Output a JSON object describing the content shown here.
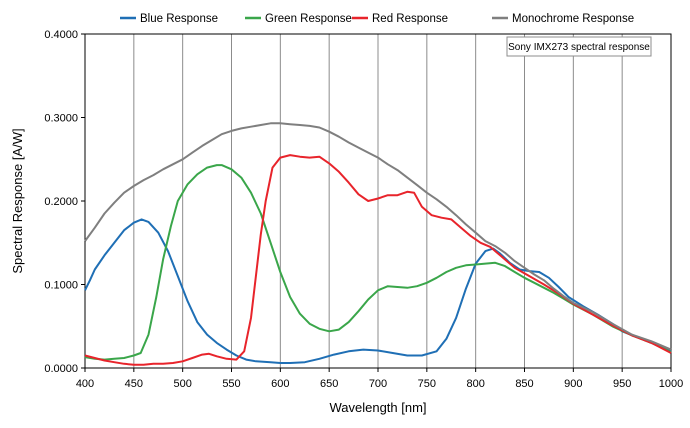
{
  "chart_data": {
    "type": "line",
    "xlabel": "Wavelength [nm]",
    "ylabel": "Spectral Response [A/W]",
    "xlim": [
      400,
      1000
    ],
    "ylim": [
      0,
      0.4
    ],
    "x_ticks": [
      400,
      450,
      500,
      550,
      600,
      650,
      700,
      750,
      800,
      850,
      900,
      950,
      1000
    ],
    "y_ticks": [
      0,
      0.1,
      0.2,
      0.3,
      0.4
    ],
    "y_tick_labels": [
      "0.0000",
      "0.1000",
      "0.2000",
      "0.3000",
      "0.4000"
    ],
    "grid": "vertical",
    "legend_position": "top",
    "annotation": "Sony IMX273 spectral response",
    "series": [
      {
        "name": "Blue Response",
        "color": "#1f6fb5",
        "points": [
          [
            400,
            0.093
          ],
          [
            405,
            0.105
          ],
          [
            410,
            0.118
          ],
          [
            420,
            0.135
          ],
          [
            430,
            0.15
          ],
          [
            440,
            0.165
          ],
          [
            450,
            0.174
          ],
          [
            458,
            0.178
          ],
          [
            465,
            0.175
          ],
          [
            475,
            0.162
          ],
          [
            485,
            0.14
          ],
          [
            495,
            0.11
          ],
          [
            505,
            0.08
          ],
          [
            515,
            0.055
          ],
          [
            525,
            0.04
          ],
          [
            535,
            0.03
          ],
          [
            545,
            0.022
          ],
          [
            555,
            0.015
          ],
          [
            565,
            0.01
          ],
          [
            575,
            0.008
          ],
          [
            590,
            0.007
          ],
          [
            600,
            0.006
          ],
          [
            610,
            0.006
          ],
          [
            625,
            0.007
          ],
          [
            640,
            0.011
          ],
          [
            655,
            0.016
          ],
          [
            670,
            0.02
          ],
          [
            685,
            0.022
          ],
          [
            700,
            0.021
          ],
          [
            715,
            0.018
          ],
          [
            730,
            0.015
          ],
          [
            745,
            0.015
          ],
          [
            760,
            0.02
          ],
          [
            770,
            0.035
          ],
          [
            780,
            0.06
          ],
          [
            790,
            0.095
          ],
          [
            800,
            0.125
          ],
          [
            810,
            0.14
          ],
          [
            818,
            0.143
          ],
          [
            825,
            0.137
          ],
          [
            835,
            0.126
          ],
          [
            845,
            0.118
          ],
          [
            855,
            0.116
          ],
          [
            865,
            0.115
          ],
          [
            875,
            0.108
          ],
          [
            885,
            0.097
          ],
          [
            895,
            0.085
          ],
          [
            910,
            0.074
          ],
          [
            925,
            0.064
          ],
          [
            940,
            0.053
          ],
          [
            950,
            0.044
          ],
          [
            965,
            0.037
          ],
          [
            980,
            0.03
          ],
          [
            1000,
            0.02
          ]
        ]
      },
      {
        "name": "Green Response",
        "color": "#3aa64a",
        "points": [
          [
            400,
            0.013
          ],
          [
            410,
            0.011
          ],
          [
            420,
            0.01
          ],
          [
            430,
            0.011
          ],
          [
            440,
            0.012
          ],
          [
            450,
            0.015
          ],
          [
            457,
            0.018
          ],
          [
            465,
            0.04
          ],
          [
            473,
            0.085
          ],
          [
            480,
            0.13
          ],
          [
            488,
            0.17
          ],
          [
            495,
            0.2
          ],
          [
            505,
            0.22
          ],
          [
            515,
            0.232
          ],
          [
            525,
            0.24
          ],
          [
            535,
            0.243
          ],
          [
            540,
            0.243
          ],
          [
            550,
            0.238
          ],
          [
            560,
            0.228
          ],
          [
            570,
            0.21
          ],
          [
            580,
            0.185
          ],
          [
            590,
            0.15
          ],
          [
            600,
            0.115
          ],
          [
            610,
            0.085
          ],
          [
            620,
            0.065
          ],
          [
            630,
            0.053
          ],
          [
            640,
            0.047
          ],
          [
            650,
            0.044
          ],
          [
            660,
            0.046
          ],
          [
            670,
            0.055
          ],
          [
            680,
            0.068
          ],
          [
            690,
            0.082
          ],
          [
            700,
            0.093
          ],
          [
            710,
            0.098
          ],
          [
            720,
            0.097
          ],
          [
            730,
            0.096
          ],
          [
            740,
            0.098
          ],
          [
            750,
            0.102
          ],
          [
            760,
            0.108
          ],
          [
            770,
            0.115
          ],
          [
            780,
            0.12
          ],
          [
            790,
            0.123
          ],
          [
            800,
            0.124
          ],
          [
            810,
            0.125
          ],
          [
            820,
            0.126
          ],
          [
            830,
            0.122
          ],
          [
            840,
            0.115
          ],
          [
            850,
            0.108
          ],
          [
            860,
            0.102
          ],
          [
            870,
            0.096
          ],
          [
            880,
            0.09
          ],
          [
            890,
            0.083
          ],
          [
            900,
            0.076
          ],
          [
            920,
            0.064
          ],
          [
            940,
            0.05
          ],
          [
            960,
            0.039
          ],
          [
            980,
            0.03
          ],
          [
            1000,
            0.019
          ]
        ]
      },
      {
        "name": "Red Response",
        "color": "#e8242b",
        "points": [
          [
            400,
            0.015
          ],
          [
            410,
            0.012
          ],
          [
            420,
            0.009
          ],
          [
            430,
            0.007
          ],
          [
            440,
            0.005
          ],
          [
            450,
            0.004
          ],
          [
            460,
            0.004
          ],
          [
            470,
            0.005
          ],
          [
            480,
            0.005
          ],
          [
            490,
            0.006
          ],
          [
            500,
            0.008
          ],
          [
            510,
            0.012
          ],
          [
            520,
            0.016
          ],
          [
            527,
            0.017
          ],
          [
            535,
            0.014
          ],
          [
            545,
            0.011
          ],
          [
            555,
            0.01
          ],
          [
            563,
            0.02
          ],
          [
            570,
            0.06
          ],
          [
            575,
            0.11
          ],
          [
            580,
            0.16
          ],
          [
            585,
            0.2
          ],
          [
            592,
            0.24
          ],
          [
            600,
            0.252
          ],
          [
            610,
            0.255
          ],
          [
            620,
            0.253
          ],
          [
            630,
            0.252
          ],
          [
            640,
            0.253
          ],
          [
            650,
            0.245
          ],
          [
            660,
            0.235
          ],
          [
            670,
            0.222
          ],
          [
            680,
            0.208
          ],
          [
            690,
            0.2
          ],
          [
            700,
            0.203
          ],
          [
            710,
            0.207
          ],
          [
            720,
            0.207
          ],
          [
            730,
            0.211
          ],
          [
            737,
            0.21
          ],
          [
            745,
            0.193
          ],
          [
            755,
            0.183
          ],
          [
            765,
            0.18
          ],
          [
            775,
            0.178
          ],
          [
            785,
            0.168
          ],
          [
            795,
            0.158
          ],
          [
            805,
            0.15
          ],
          [
            815,
            0.145
          ],
          [
            825,
            0.135
          ],
          [
            840,
            0.12
          ],
          [
            855,
            0.11
          ],
          [
            870,
            0.1
          ],
          [
            885,
            0.089
          ],
          [
            900,
            0.077
          ],
          [
            920,
            0.064
          ],
          [
            940,
            0.051
          ],
          [
            960,
            0.039
          ],
          [
            980,
            0.03
          ],
          [
            1000,
            0.018
          ]
        ]
      },
      {
        "name": "Monochrome Response",
        "color": "#7f7f7f",
        "points": [
          [
            400,
            0.152
          ],
          [
            410,
            0.168
          ],
          [
            420,
            0.185
          ],
          [
            430,
            0.198
          ],
          [
            440,
            0.21
          ],
          [
            450,
            0.218
          ],
          [
            460,
            0.225
          ],
          [
            470,
            0.231
          ],
          [
            480,
            0.238
          ],
          [
            490,
            0.244
          ],
          [
            500,
            0.25
          ],
          [
            510,
            0.258
          ],
          [
            520,
            0.266
          ],
          [
            530,
            0.273
          ],
          [
            540,
            0.28
          ],
          [
            550,
            0.284
          ],
          [
            560,
            0.287
          ],
          [
            570,
            0.289
          ],
          [
            580,
            0.291
          ],
          [
            590,
            0.293
          ],
          [
            600,
            0.293
          ],
          [
            610,
            0.292
          ],
          [
            620,
            0.291
          ],
          [
            630,
            0.29
          ],
          [
            640,
            0.288
          ],
          [
            650,
            0.283
          ],
          [
            660,
            0.277
          ],
          [
            670,
            0.27
          ],
          [
            680,
            0.264
          ],
          [
            690,
            0.258
          ],
          [
            700,
            0.252
          ],
          [
            710,
            0.244
          ],
          [
            720,
            0.237
          ],
          [
            730,
            0.228
          ],
          [
            740,
            0.219
          ],
          [
            750,
            0.21
          ],
          [
            760,
            0.202
          ],
          [
            770,
            0.193
          ],
          [
            780,
            0.183
          ],
          [
            790,
            0.172
          ],
          [
            800,
            0.162
          ],
          [
            810,
            0.152
          ],
          [
            820,
            0.146
          ],
          [
            830,
            0.138
          ],
          [
            840,
            0.128
          ],
          [
            850,
            0.12
          ],
          [
            860,
            0.112
          ],
          [
            870,
            0.105
          ],
          [
            880,
            0.095
          ],
          [
            890,
            0.086
          ],
          [
            900,
            0.078
          ],
          [
            920,
            0.067
          ],
          [
            940,
            0.053
          ],
          [
            960,
            0.04
          ],
          [
            980,
            0.032
          ],
          [
            1000,
            0.022
          ]
        ]
      }
    ]
  }
}
